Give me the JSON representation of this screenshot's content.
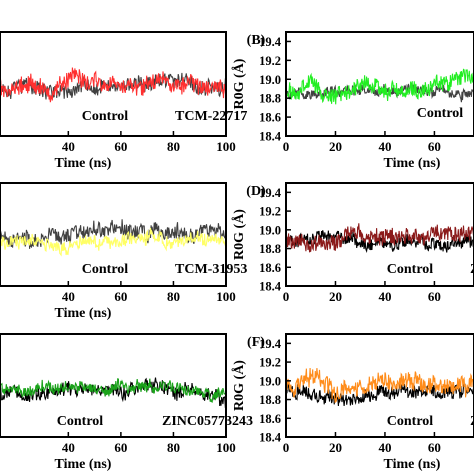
{
  "chart_data": [
    {
      "panel": "",
      "type": "line",
      "xlabel": "Time (ns)",
      "ylabel": "",
      "xlim": [
        20,
        100
      ],
      "xticks": [
        40,
        60,
        80,
        100
      ],
      "yticks": [],
      "series": [
        {
          "name": "Control",
          "color": "#404040",
          "mean": 18.93,
          "amp": 0.08,
          "values": []
        },
        {
          "name": "TCM-22717",
          "color": "#ff3030",
          "mean": 18.95,
          "amp": 0.09,
          "values": []
        }
      ]
    },
    {
      "panel": "(B)",
      "type": "line",
      "xlabel": "Time (ns)",
      "ylabel": "R0G (Å)",
      "xlim": [
        0,
        70
      ],
      "ylim": [
        18.4,
        19.5
      ],
      "xticks": [
        0,
        20,
        40,
        60
      ],
      "yticks": [
        "19.4",
        "19.2",
        "19.0",
        "18.8",
        "18.6",
        "18.4"
      ],
      "series": [
        {
          "name": "Control",
          "color": "#404040",
          "mean": 18.88,
          "amp": 0.05,
          "values": []
        },
        {
          "name": "",
          "color": "#22ee22",
          "mean": 18.9,
          "amp": 0.08,
          "values": []
        }
      ]
    },
    {
      "panel": "",
      "type": "line",
      "xlabel": "Time (ns)",
      "ylabel": "",
      "xlim": [
        20,
        100
      ],
      "xticks": [
        40,
        60,
        80,
        100
      ],
      "yticks": [],
      "series": [
        {
          "name": "Control",
          "color": "#404040",
          "mean": 18.95,
          "amp": 0.08,
          "values": []
        },
        {
          "name": "TCM-31953",
          "color": "#ffff66",
          "mean": 18.85,
          "amp": 0.07,
          "values": []
        }
      ]
    },
    {
      "panel": "(D)",
      "type": "line",
      "xlabel": "",
      "ylabel": "R0G (Å)",
      "xlim": [
        0,
        70
      ],
      "ylim": [
        18.4,
        19.5
      ],
      "xticks": [
        0,
        20,
        40,
        60
      ],
      "yticks": [
        "19.4",
        "19.2",
        "19.0",
        "18.8",
        "18.6",
        "18.4"
      ],
      "series": [
        {
          "name": "Control",
          "color": "#000000",
          "mean": 18.88,
          "amp": 0.06,
          "values": []
        },
        {
          "name": "",
          "color": "#8b1a1a",
          "mean": 18.92,
          "amp": 0.08,
          "values": []
        }
      ]
    },
    {
      "panel": "",
      "type": "line",
      "xlabel": "Time (ns)",
      "ylabel": "",
      "xlim": [
        20,
        100
      ],
      "xticks": [
        40,
        60,
        80,
        100
      ],
      "yticks": [],
      "series": [
        {
          "name": "Control",
          "color": "#000000",
          "mean": 18.88,
          "amp": 0.07,
          "values": []
        },
        {
          "name": "ZINC05773243",
          "color": "#1aa31a",
          "mean": 18.93,
          "amp": 0.06,
          "values": []
        }
      ]
    },
    {
      "panel": "(F)",
      "type": "line",
      "xlabel": "Time (ns)",
      "ylabel": "R0G (Å)",
      "xlim": [
        0,
        70
      ],
      "ylim": [
        18.4,
        19.5
      ],
      "xticks": [
        0,
        20,
        40,
        60
      ],
      "yticks": [
        "19.4",
        "19.2",
        "19.0",
        "18.8",
        "18.6",
        "18.4"
      ],
      "series": [
        {
          "name": "Control",
          "color": "#000000",
          "mean": 18.88,
          "amp": 0.07,
          "values": []
        },
        {
          "name": "",
          "color": "#ff8c1a",
          "mean": 18.95,
          "amp": 0.09,
          "values": []
        }
      ]
    }
  ]
}
